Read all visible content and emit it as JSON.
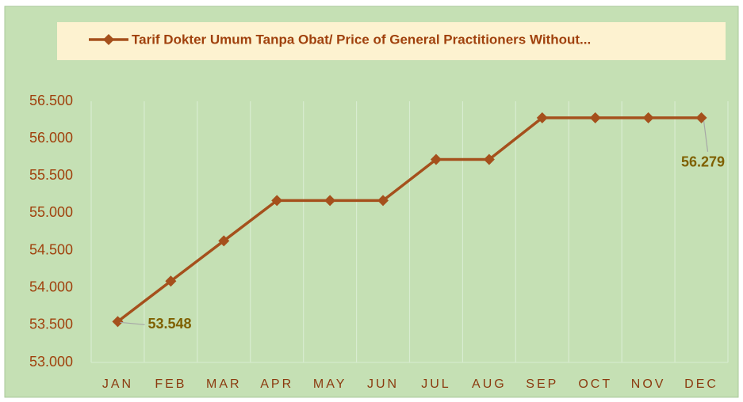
{
  "chart_data": {
    "type": "line",
    "categories": [
      "JAN",
      "FEB",
      "MAR",
      "APR",
      "MAY",
      "JUN",
      "JUL",
      "AUG",
      "SEP",
      "OCT",
      "NOV",
      "DEC"
    ],
    "series": [
      {
        "name": "Tarif Dokter Umum Tanpa Obat/ Price of General Practitioners Without...",
        "color": "#a5501c",
        "values": [
          53548,
          54090,
          54630,
          55170,
          55170,
          55170,
          55720,
          55720,
          56279,
          56279,
          56279,
          56279
        ],
        "value_labels": [
          "53.548",
          null,
          null,
          null,
          null,
          null,
          null,
          null,
          null,
          null,
          null,
          "56.279"
        ]
      }
    ],
    "ylim": [
      53000,
      56500
    ],
    "yticks": [
      {
        "value": 53000,
        "label": "53.000"
      },
      {
        "value": 53500,
        "label": "53.500"
      },
      {
        "value": 54000,
        "label": "54.000"
      },
      {
        "value": 54500,
        "label": "54.500"
      },
      {
        "value": 55000,
        "label": "55.000"
      },
      {
        "value": 55500,
        "label": "55.500"
      },
      {
        "value": 56000,
        "label": "56.000"
      },
      {
        "value": 56500,
        "label": "56.500"
      }
    ],
    "grid": "vertical",
    "legend": "top"
  }
}
